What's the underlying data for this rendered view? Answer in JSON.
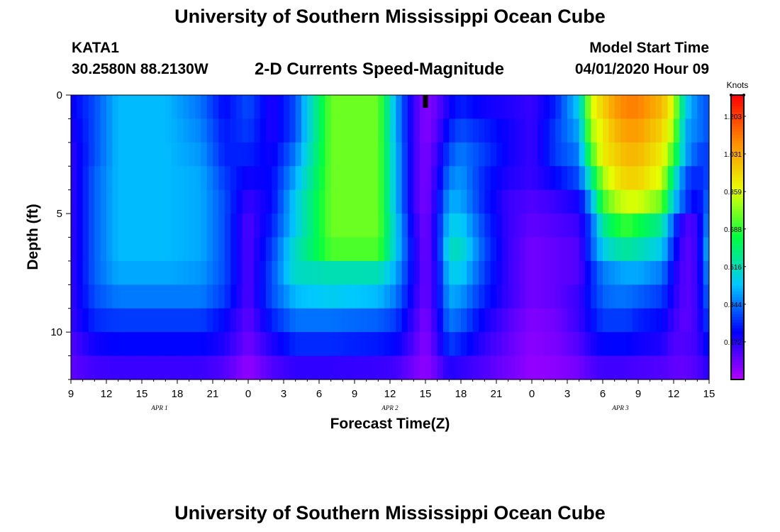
{
  "header": {
    "title": "University of Southern Mississippi Ocean Cube",
    "station": "KATA1",
    "coordinates": "30.2580N 88.2130W",
    "subtitle": "2-D Currents Speed-Magnitude",
    "model_start_label": "Model Start Time",
    "model_start_value": "04/01/2020 Hour 09"
  },
  "footer": {
    "title": "University of Southern Mississippi Ocean Cube"
  },
  "chart_data": {
    "type": "heatmap",
    "title": "2-D Currents Speed-Magnitude",
    "xlabel": "Forecast Time(Z)",
    "ylabel": "Depth (ft)",
    "x_range_hours": [
      0,
      54
    ],
    "x_tick_labels": [
      "9",
      "12",
      "15",
      "18",
      "21",
      "0",
      "3",
      "6",
      "9",
      "12",
      "15",
      "18",
      "21",
      "0",
      "3",
      "6",
      "9",
      "12",
      "15"
    ],
    "date_labels": [
      {
        "label": "APR 1",
        "hour": 7.5
      },
      {
        "label": "APR 2",
        "hour": 27
      },
      {
        "label": "APR 3",
        "hour": 46.5
      }
    ],
    "y_range_ft": [
      0,
      12
    ],
    "y_major_ticks": [
      0,
      5,
      10
    ],
    "y_minor_step": 1,
    "current_time_marker_hour": 30,
    "colorbar": {
      "label": "Knots",
      "min": 0,
      "max": 1.3,
      "ticks": [
        "1.203",
        "1.031",
        "0.859",
        "0.688",
        "0.516",
        "0.344",
        "0.172"
      ],
      "tick_values": [
        1.203,
        1.031,
        0.859,
        0.688,
        0.516,
        0.344,
        0.172
      ],
      "colors": [
        "#b400ff",
        "#0000ff",
        "#00c8ff",
        "#00ff40",
        "#e8ff00",
        "#ff8c00",
        "#ff0000"
      ]
    },
    "depth_rows_ft": [
      0.5,
      1.5,
      2.5,
      3.5,
      4.5,
      5.5,
      6.5,
      7.5,
      8.5,
      9.5,
      10.5,
      11.5
    ],
    "time_knots_hours": [
      0,
      2,
      4,
      8,
      11,
      13,
      15,
      17,
      19,
      22,
      26,
      27.5,
      29,
      30,
      31,
      32,
      33,
      35,
      37,
      39,
      41,
      43,
      44,
      45,
      46,
      47,
      48,
      50,
      51,
      52,
      53,
      54
    ],
    "speed_knots": [
      [
        0.2,
        0.3,
        0.42,
        0.42,
        0.34,
        0.22,
        0.3,
        0.18,
        0.3,
        0.75,
        0.75,
        0.4,
        0.15,
        0.05,
        0.1,
        0.2,
        0.25,
        0.2,
        0.18,
        0.15,
        0.25,
        0.45,
        0.85,
        0.95,
        1.05,
        1.1,
        1.1,
        1.0,
        0.85,
        0.45,
        0.35,
        0.3
      ],
      [
        0.18,
        0.3,
        0.42,
        0.42,
        0.36,
        0.24,
        0.28,
        0.18,
        0.3,
        0.75,
        0.75,
        0.4,
        0.15,
        0.05,
        0.12,
        0.25,
        0.3,
        0.25,
        0.2,
        0.15,
        0.28,
        0.4,
        0.8,
        0.9,
        1.0,
        1.05,
        1.05,
        0.95,
        0.8,
        0.4,
        0.35,
        0.3
      ],
      [
        0.16,
        0.3,
        0.42,
        0.42,
        0.38,
        0.25,
        0.25,
        0.2,
        0.35,
        0.75,
        0.75,
        0.42,
        0.15,
        0.06,
        0.15,
        0.3,
        0.35,
        0.28,
        0.2,
        0.15,
        0.28,
        0.35,
        0.7,
        0.9,
        0.95,
        1.0,
        1.0,
        0.9,
        0.7,
        0.4,
        0.3,
        0.28
      ],
      [
        0.15,
        0.32,
        0.42,
        0.42,
        0.4,
        0.28,
        0.2,
        0.22,
        0.4,
        0.75,
        0.75,
        0.42,
        0.15,
        0.06,
        0.18,
        0.35,
        0.38,
        0.25,
        0.18,
        0.15,
        0.22,
        0.3,
        0.55,
        0.8,
        0.9,
        0.95,
        0.95,
        0.85,
        0.55,
        0.3,
        0.25,
        0.3
      ],
      [
        0.15,
        0.32,
        0.42,
        0.42,
        0.4,
        0.3,
        0.15,
        0.22,
        0.45,
        0.75,
        0.75,
        0.42,
        0.15,
        0.06,
        0.2,
        0.4,
        0.4,
        0.25,
        0.15,
        0.12,
        0.15,
        0.2,
        0.4,
        0.7,
        0.8,
        0.85,
        0.85,
        0.75,
        0.45,
        0.28,
        0.2,
        0.35
      ],
      [
        0.15,
        0.32,
        0.42,
        0.42,
        0.4,
        0.3,
        0.12,
        0.25,
        0.45,
        0.75,
        0.75,
        0.45,
        0.18,
        0.07,
        0.22,
        0.45,
        0.45,
        0.28,
        0.15,
        0.1,
        0.12,
        0.15,
        0.3,
        0.55,
        0.65,
        0.7,
        0.65,
        0.55,
        0.3,
        0.12,
        0.15,
        0.4
      ],
      [
        0.15,
        0.32,
        0.42,
        0.42,
        0.4,
        0.3,
        0.12,
        0.28,
        0.5,
        0.72,
        0.72,
        0.45,
        0.2,
        0.07,
        0.22,
        0.5,
        0.5,
        0.3,
        0.15,
        0.08,
        0.1,
        0.12,
        0.3,
        0.45,
        0.52,
        0.55,
        0.52,
        0.45,
        0.25,
        0.1,
        0.15,
        0.45
      ],
      [
        0.15,
        0.32,
        0.4,
        0.4,
        0.38,
        0.3,
        0.12,
        0.3,
        0.5,
        0.52,
        0.52,
        0.4,
        0.2,
        0.08,
        0.2,
        0.45,
        0.45,
        0.28,
        0.15,
        0.08,
        0.1,
        0.12,
        0.25,
        0.35,
        0.38,
        0.4,
        0.4,
        0.35,
        0.2,
        0.1,
        0.15,
        0.4
      ],
      [
        0.15,
        0.3,
        0.35,
        0.35,
        0.35,
        0.28,
        0.12,
        0.3,
        0.42,
        0.45,
        0.42,
        0.35,
        0.18,
        0.08,
        0.2,
        0.4,
        0.38,
        0.25,
        0.15,
        0.08,
        0.1,
        0.15,
        0.25,
        0.32,
        0.34,
        0.34,
        0.32,
        0.28,
        0.18,
        0.1,
        0.15,
        0.35
      ],
      [
        0.15,
        0.26,
        0.28,
        0.28,
        0.28,
        0.22,
        0.1,
        0.25,
        0.34,
        0.34,
        0.32,
        0.28,
        0.15,
        0.06,
        0.18,
        0.35,
        0.32,
        0.2,
        0.12,
        0.06,
        0.08,
        0.15,
        0.22,
        0.28,
        0.28,
        0.28,
        0.25,
        0.22,
        0.15,
        0.1,
        0.15,
        0.3
      ],
      [
        0.12,
        0.2,
        0.22,
        0.22,
        0.22,
        0.18,
        0.08,
        0.18,
        0.26,
        0.26,
        0.24,
        0.22,
        0.12,
        0.05,
        0.15,
        0.28,
        0.25,
        0.16,
        0.1,
        0.05,
        0.07,
        0.12,
        0.18,
        0.22,
        0.22,
        0.22,
        0.2,
        0.18,
        0.12,
        0.12,
        0.14,
        0.25
      ],
      [
        0.1,
        0.14,
        0.15,
        0.15,
        0.15,
        0.12,
        0.04,
        0.12,
        0.16,
        0.16,
        0.15,
        0.14,
        0.08,
        0.04,
        0.1,
        0.18,
        0.16,
        0.12,
        0.08,
        0.04,
        0.05,
        0.08,
        0.12,
        0.14,
        0.14,
        0.14,
        0.13,
        0.12,
        0.1,
        0.1,
        0.12,
        0.18
      ]
    ]
  }
}
